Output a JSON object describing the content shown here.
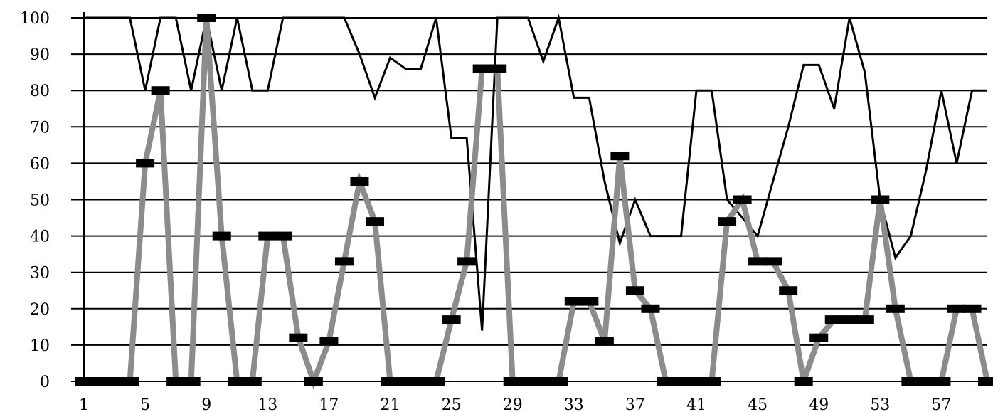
{
  "chart_data": {
    "type": "line",
    "title": "",
    "xlabel": "",
    "ylabel": "",
    "ylim": [
      0,
      100
    ],
    "y_ticks": [
      0,
      10,
      20,
      30,
      40,
      50,
      60,
      70,
      80,
      90,
      100
    ],
    "x_tick_labels": [
      1,
      5,
      9,
      13,
      17,
      21,
      25,
      29,
      33,
      37,
      41,
      45,
      49,
      53,
      57
    ],
    "x": [
      1,
      2,
      3,
      4,
      5,
      6,
      7,
      8,
      9,
      10,
      11,
      12,
      13,
      14,
      15,
      16,
      17,
      18,
      19,
      20,
      21,
      22,
      23,
      24,
      25,
      26,
      27,
      28,
      29,
      30,
      31,
      32,
      33,
      34,
      35,
      36,
      37,
      38,
      39,
      40,
      41,
      42,
      43,
      44,
      45,
      46,
      47,
      48,
      49,
      50,
      51,
      52,
      53,
      54,
      55,
      56,
      57,
      58,
      59,
      60
    ],
    "grid": true,
    "legend": "none",
    "series": [
      {
        "color": "#000000",
        "style": "thin-line",
        "values": [
          100,
          100,
          100,
          100,
          80,
          100,
          100,
          80,
          100,
          80,
          100,
          80,
          80,
          100,
          100,
          100,
          100,
          100,
          90,
          78,
          89,
          86,
          86,
          100,
          67,
          67,
          14,
          100,
          100,
          100,
          88,
          100,
          78,
          78,
          55,
          38,
          50,
          40,
          40,
          40,
          80,
          80,
          50,
          45,
          40,
          55,
          70,
          87,
          87,
          75,
          100,
          85,
          50,
          34,
          40,
          58,
          80,
          60,
          80,
          80
        ]
      },
      {
        "color": "#8c8c8c",
        "style": "thick-line-dash-markers",
        "marker_color": "#000000",
        "values": [
          0,
          0,
          0,
          0,
          60,
          80,
          0,
          0,
          100,
          40,
          0,
          0,
          40,
          40,
          12,
          0,
          11,
          33,
          55,
          44,
          0,
          0,
          0,
          0,
          17,
          33,
          86,
          86,
          0,
          0,
          0,
          0,
          22,
          22,
          11,
          62,
          25,
          20,
          0,
          0,
          0,
          0,
          44,
          50,
          33,
          33,
          25,
          0,
          12,
          17,
          17,
          17,
          50,
          20,
          0,
          0,
          0,
          20,
          20,
          0
        ]
      }
    ]
  }
}
